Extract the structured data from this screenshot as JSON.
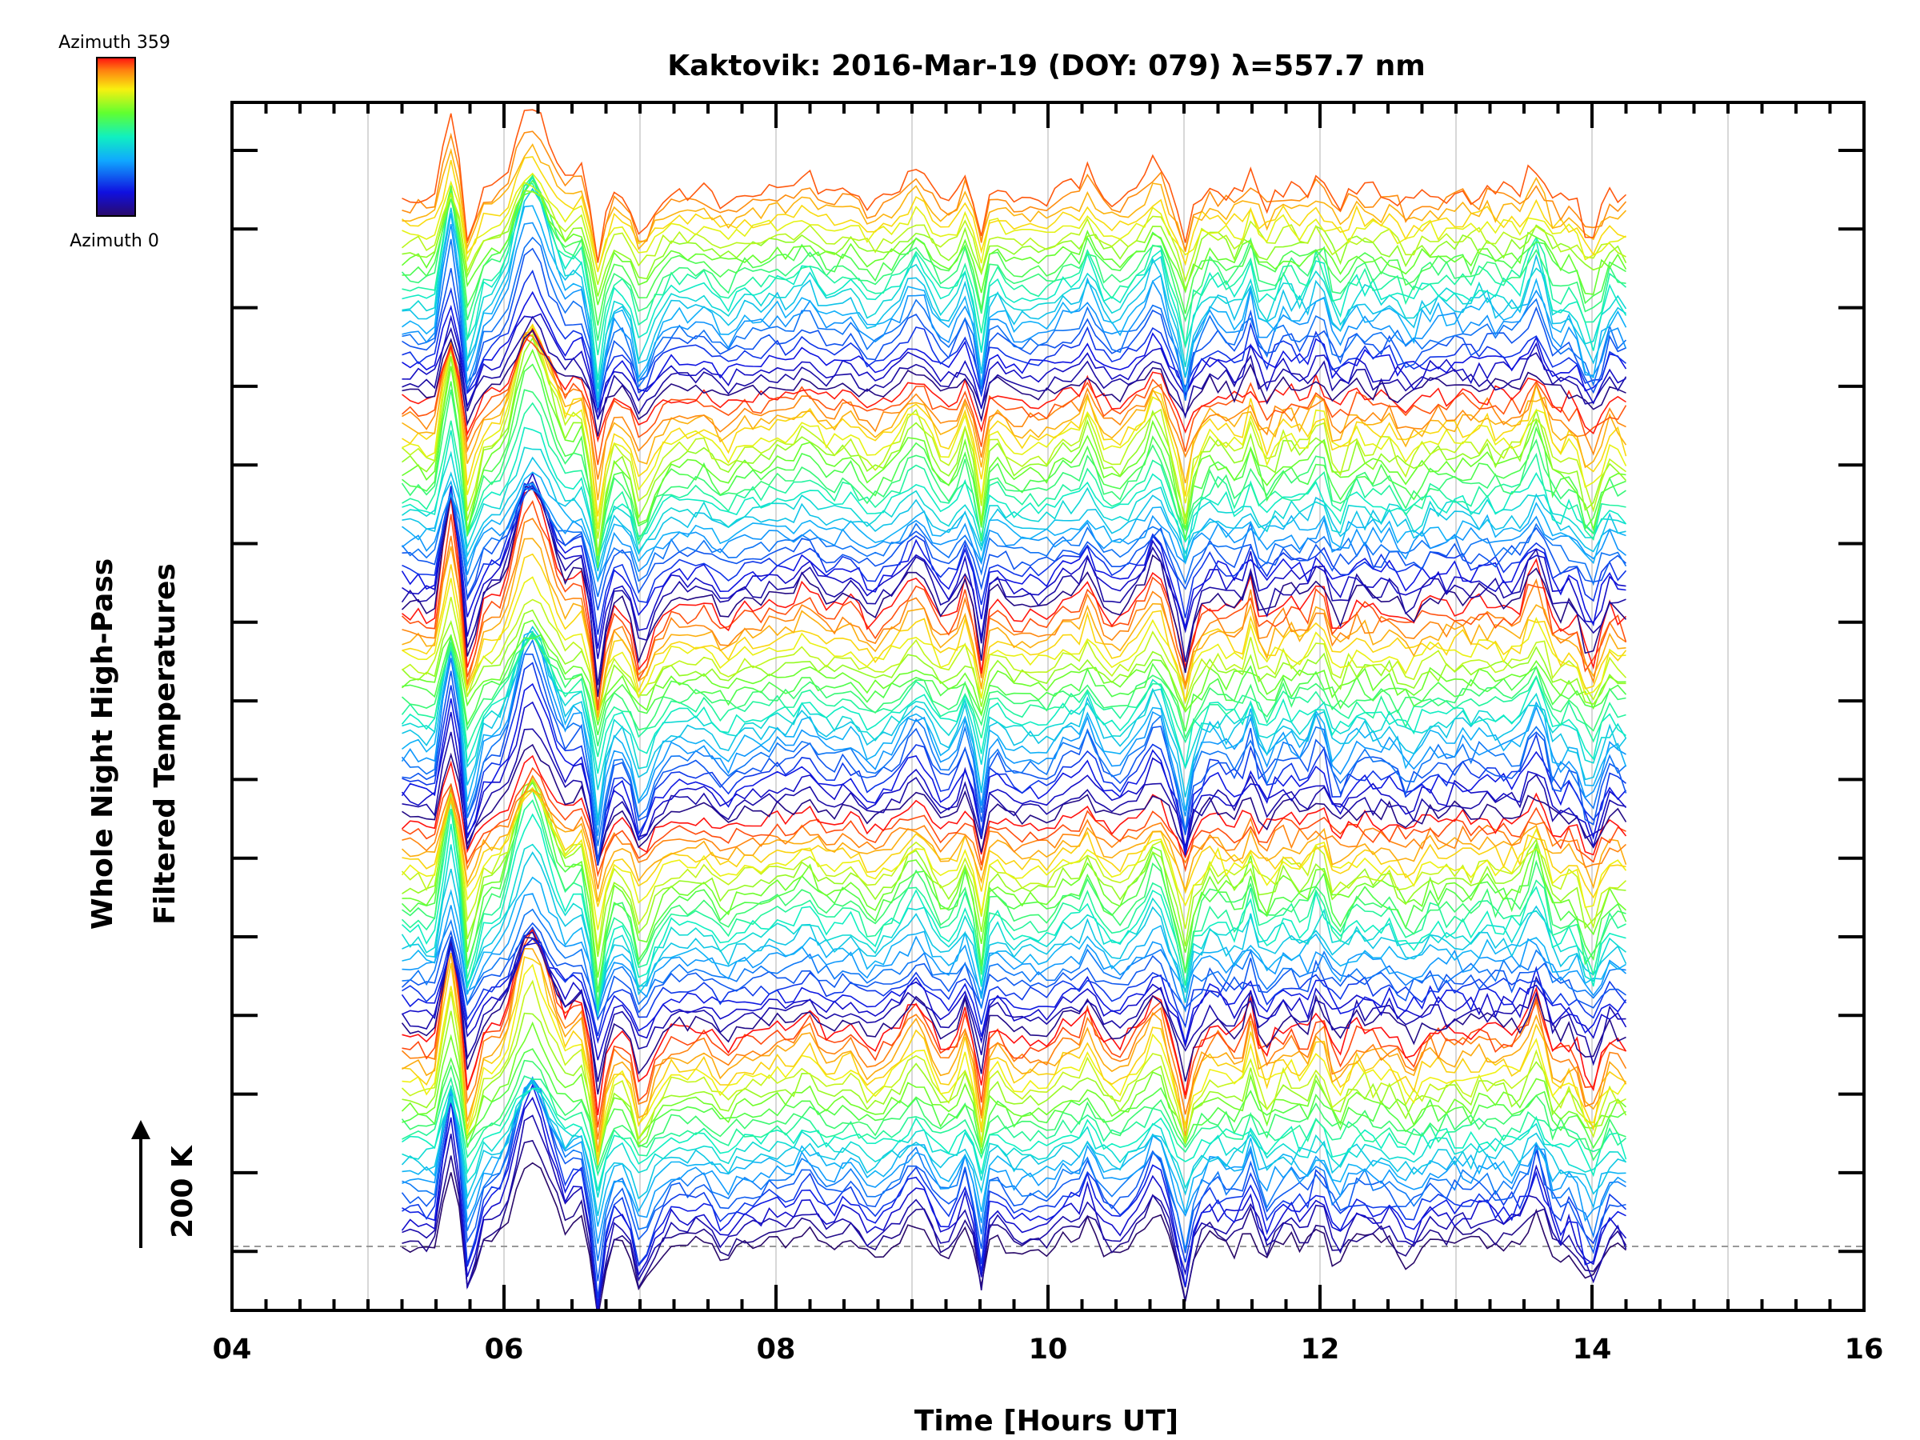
{
  "chart_data": {
    "type": "line",
    "title": "Kaktovik: 2016-Mar-19 (DOY: 079) λ=557.7 nm",
    "xlabel": "Time [Hours UT]",
    "ylabel_line1": "Whole Night High-Pass",
    "ylabel_line2": "Filtered Temperatures",
    "xlim": [
      4,
      16
    ],
    "x_ticks": [
      {
        "value": 4,
        "label": "04"
      },
      {
        "value": 6,
        "label": "06"
      },
      {
        "value": 8,
        "label": "08"
      },
      {
        "value": 10,
        "label": "10"
      },
      {
        "value": 12,
        "label": "12"
      },
      {
        "value": 14,
        "label": "14"
      },
      {
        "value": 16,
        "label": "16"
      }
    ],
    "x_gridlines": [
      5,
      6,
      7,
      8,
      9,
      10,
      11,
      12,
      13,
      14,
      15
    ],
    "data_time_range": [
      5.25,
      14.25
    ],
    "scale_bar": {
      "label": "200 K",
      "value_K": 200
    },
    "colorbar": {
      "top_label": "Azimuth 359",
      "bottom_label": "Azimuth 0",
      "min": 0,
      "max": 359,
      "colormap": "rainbow"
    },
    "series_count": 120,
    "series_description": "Stacked high-pass filtered temperature traces, one per azimuth (0–359°), each vertically offset; color encodes azimuth",
    "colors": {
      "grid": "#d8d8d8",
      "baseline": "#999999",
      "axis": "#000000"
    }
  }
}
